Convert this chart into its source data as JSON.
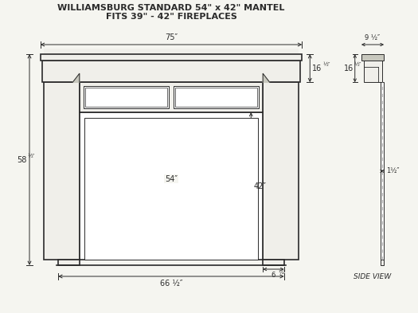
{
  "title_line1": "WILLIAMSBURG STANDARD 54\" x 42\" MANTEL",
  "title_line2": "FITS 39\" - 42\" FIREPLACES",
  "bg_color": "#f5f5f0",
  "line_color": "#2a2a2a",
  "side_view_label": "SIDE VIEW",
  "mantel_face": "#f0efea",
  "mantel_dark": "#c8c8be",
  "white_fill": "#ffffff",
  "fig_w": 5.25,
  "fig_h": 3.93,
  "dpi": 100
}
